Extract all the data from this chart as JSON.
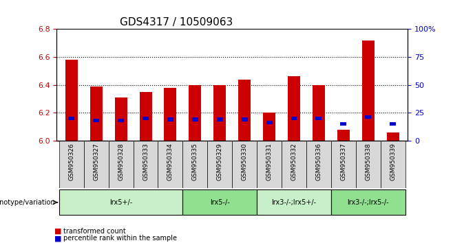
{
  "title": "GDS4317 / 10509063",
  "samples": [
    "GSM950326",
    "GSM950327",
    "GSM950328",
    "GSM950333",
    "GSM950334",
    "GSM950335",
    "GSM950329",
    "GSM950330",
    "GSM950331",
    "GSM950332",
    "GSM950336",
    "GSM950337",
    "GSM950338",
    "GSM950339"
  ],
  "red_values": [
    6.58,
    6.39,
    6.31,
    6.35,
    6.38,
    6.4,
    6.4,
    6.44,
    6.2,
    6.46,
    6.4,
    6.08,
    6.72,
    6.06
  ],
  "blue_values": [
    6.16,
    6.14,
    6.14,
    6.16,
    6.15,
    6.15,
    6.15,
    6.15,
    6.13,
    6.16,
    6.16,
    6.12,
    6.17,
    6.12
  ],
  "percentile_values": [
    20,
    18,
    18,
    20,
    19,
    19,
    19,
    19,
    16,
    20,
    20,
    15,
    21,
    15
  ],
  "ylim_left": [
    6.0,
    6.8
  ],
  "ylim_right": [
    0,
    100
  ],
  "yticks_left": [
    6.0,
    6.2,
    6.4,
    6.6,
    6.8
  ],
  "yticks_right": [
    0,
    25,
    50,
    75,
    100
  ],
  "grid_values": [
    6.2,
    6.4,
    6.6
  ],
  "groups": [
    {
      "label": "lrx5+/-",
      "start": 0,
      "end": 5,
      "color": "#c8f0c8"
    },
    {
      "label": "lrx5-/-",
      "start": 5,
      "end": 8,
      "color": "#90e090"
    },
    {
      "label": "lrx3-/-;lrx5+/-",
      "start": 8,
      "end": 11,
      "color": "#c8f0c8"
    },
    {
      "label": "lrx3-/-;lrx5-/-",
      "start": 11,
      "end": 14,
      "color": "#90e090"
    }
  ],
  "bar_color_red": "#cc0000",
  "bar_color_blue": "#0000cc",
  "bar_width": 0.5,
  "base_value": 6.0,
  "ylabel_left_color": "#cc0000",
  "ylabel_right_color": "#0000cc",
  "legend_red_label": "transformed count",
  "legend_blue_label": "percentile rank within the sample",
  "genotype_label": "genotype/variation",
  "title_fontsize": 11,
  "tick_fontsize": 8,
  "label_fontsize": 8
}
